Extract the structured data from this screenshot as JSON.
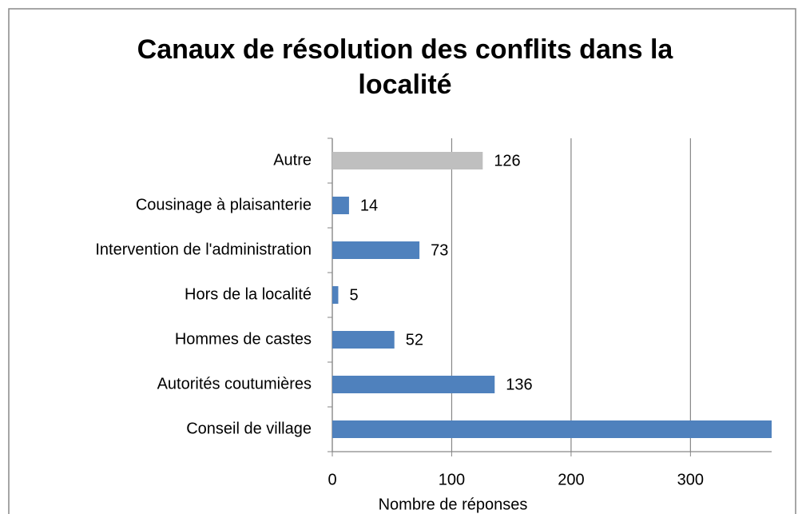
{
  "chart_data": {
    "type": "barh",
    "title": "Canaux de résolution des conflits dans la localité",
    "categories": [
      "Conseil de village",
      "Autorités coutumières",
      "Hommes de castes",
      "Hors de la localité",
      "Intervention de l'administration",
      "Cousinage à plaisanterie",
      "Autre"
    ],
    "values": [
      368,
      136,
      52,
      5,
      73,
      14,
      126
    ],
    "colors": [
      "#4f81bd",
      "#4f81bd",
      "#4f81bd",
      "#4f81bd",
      "#4f81bd",
      "#4f81bd",
      "#bfbfbf"
    ],
    "xlim": [
      0,
      368
    ],
    "xticks": [
      0,
      100,
      200,
      300
    ],
    "xlabel": "Nombre de réponses",
    "grid": true
  }
}
